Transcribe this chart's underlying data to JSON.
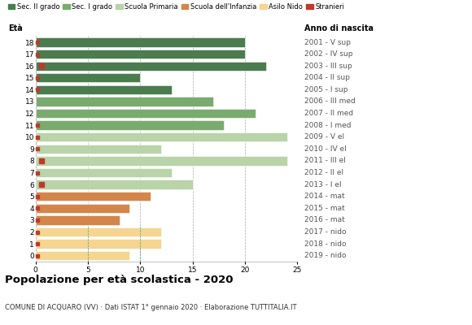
{
  "title": "Popolazione per età scolastica - 2020",
  "subtitle": "COMUNE DI ACQUARO (VV) · Dati ISTAT 1° gennaio 2020 · Elaborazione TUTTITALIA.IT",
  "xlabel_left": "Età",
  "xlabel_right": "Anno di nascita",
  "ages": [
    18,
    17,
    16,
    15,
    14,
    13,
    12,
    11,
    10,
    9,
    8,
    7,
    6,
    5,
    4,
    3,
    2,
    1,
    0
  ],
  "years": [
    "2001 - V sup",
    "2002 - IV sup",
    "2003 - III sup",
    "2004 - II sup",
    "2005 - I sup",
    "2006 - III med",
    "2007 - II med",
    "2008 - I med",
    "2009 - V el",
    "2010 - IV el",
    "2011 - III el",
    "2012 - II el",
    "2013 - I el",
    "2014 - mat",
    "2015 - mat",
    "2016 - mat",
    "2017 - nido",
    "2018 - nido",
    "2019 - nido"
  ],
  "values": [
    20,
    20,
    22,
    10,
    13,
    17,
    21,
    18,
    24,
    12,
    24,
    13,
    15,
    11,
    9,
    8,
    12,
    12,
    9
  ],
  "bar_colors": [
    "#4a7c4e",
    "#4a7c4e",
    "#4a7c4e",
    "#4a7c4e",
    "#4a7c4e",
    "#7aab6e",
    "#7aab6e",
    "#7aab6e",
    "#b8d4a8",
    "#b8d4a8",
    "#b8d4a8",
    "#b8d4a8",
    "#b8d4a8",
    "#d4854a",
    "#d4854a",
    "#d4854a",
    "#f5d590",
    "#f5d590",
    "#f5d590"
  ],
  "stranieri_small_ages": [
    18,
    17,
    15,
    14,
    11,
    10,
    9,
    7,
    5,
    4,
    3,
    2,
    1,
    0
  ],
  "stranieri_big_ages": [
    16,
    8,
    6
  ],
  "stranieri_color": "#c0392b",
  "legend_labels": [
    "Sec. II grado",
    "Sec. I grado",
    "Scuola Primaria",
    "Scuola dell'Infanzia",
    "Asilo Nido",
    "Stranieri"
  ],
  "legend_colors": [
    "#4a7c4e",
    "#7aab6e",
    "#b8d4a8",
    "#d4854a",
    "#f5d590",
    "#c0392b"
  ],
  "xlim": [
    0,
    25
  ],
  "xticks": [
    0,
    5,
    10,
    15,
    20,
    25
  ],
  "grid_color": "#cccccc",
  "bar_height": 0.78
}
